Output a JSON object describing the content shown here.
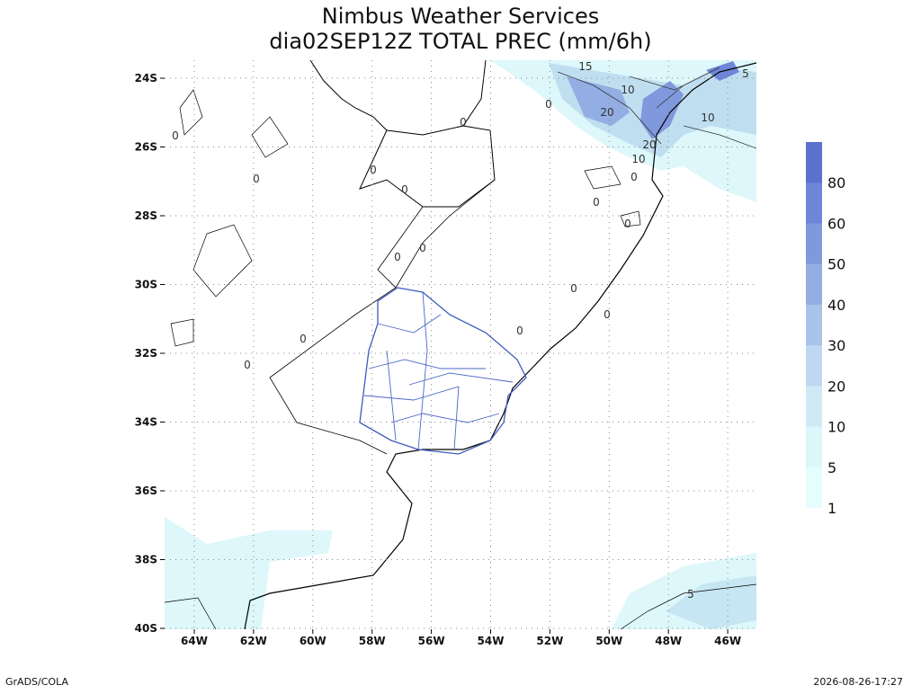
{
  "header": {
    "title": "Nimbus Weather Services",
    "subtitle": "dia02SEP12Z TOTAL PREC (mm/6h)"
  },
  "map": {
    "lat_labels": [
      "24S",
      "26S",
      "28S",
      "30S",
      "32S",
      "34S",
      "36S",
      "38S",
      "40S"
    ],
    "lon_labels": [
      "64W",
      "62W",
      "60W",
      "58W",
      "56W",
      "54W",
      "52W",
      "50W",
      "48W",
      "46W"
    ],
    "contour_labels": [
      "15",
      "10",
      "20",
      "10",
      "5",
      "20",
      "10",
      "5",
      "0",
      "0",
      "0",
      "0",
      "0",
      "0",
      "0",
      "0",
      "0",
      "0",
      "0",
      "0",
      "0",
      "0",
      "0",
      "0"
    ]
  },
  "legend": {
    "labels": [
      "80",
      "60",
      "50",
      "40",
      "30",
      "20",
      "10",
      "5",
      "1"
    ],
    "colors": [
      "#5b70cf",
      "#6d86d7",
      "#8099dd",
      "#94aee3",
      "#a9c3ea",
      "#bdd8f0",
      "#cdeaf5",
      "#dcf6fa",
      "#e6fdfd"
    ]
  },
  "footer": {
    "left": "GrADS/COLA",
    "right": "2026-08-26-17:27"
  }
}
